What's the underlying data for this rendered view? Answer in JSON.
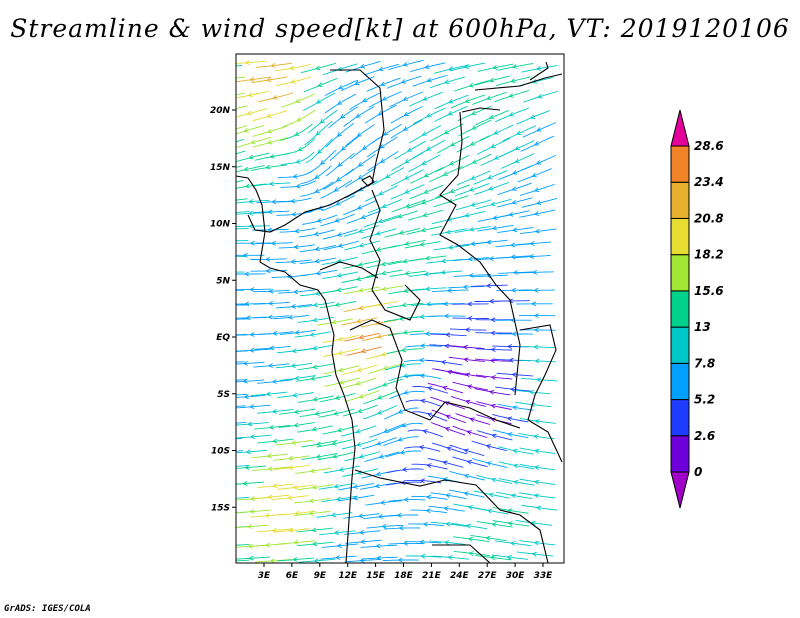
{
  "title": "Streamline & wind speed[kt] at 600hPa, VT: 2019120106",
  "credit": "GrADS: IGES/COLA",
  "map": {
    "lon_ticks": [
      "3E",
      "6E",
      "9E",
      "12E",
      "15E",
      "18E",
      "21E",
      "24E",
      "27E",
      "30E",
      "33E"
    ],
    "lon_values": [
      3,
      6,
      9,
      12,
      15,
      18,
      21,
      24,
      27,
      30,
      33
    ],
    "lat_ticks": [
      "20N",
      "15N",
      "10N",
      "5N",
      "EQ",
      "5S",
      "10S",
      "15S"
    ],
    "lat_values": [
      20,
      15,
      10,
      5,
      0,
      -5,
      -10,
      -15
    ]
  },
  "colorbar": {
    "labels": [
      "0",
      "2.6",
      "5.2",
      "7.8",
      "13",
      "15.6",
      "18.2",
      "20.8",
      "23.4",
      "28.6"
    ],
    "colors": [
      "#a000c8",
      "#6e00dc",
      "#1e3cff",
      "#00a0ff",
      "#00c8c8",
      "#00d28c",
      "#a0e632",
      "#e6dc32",
      "#e6af2d",
      "#f08228",
      "#e6009b"
    ]
  }
}
